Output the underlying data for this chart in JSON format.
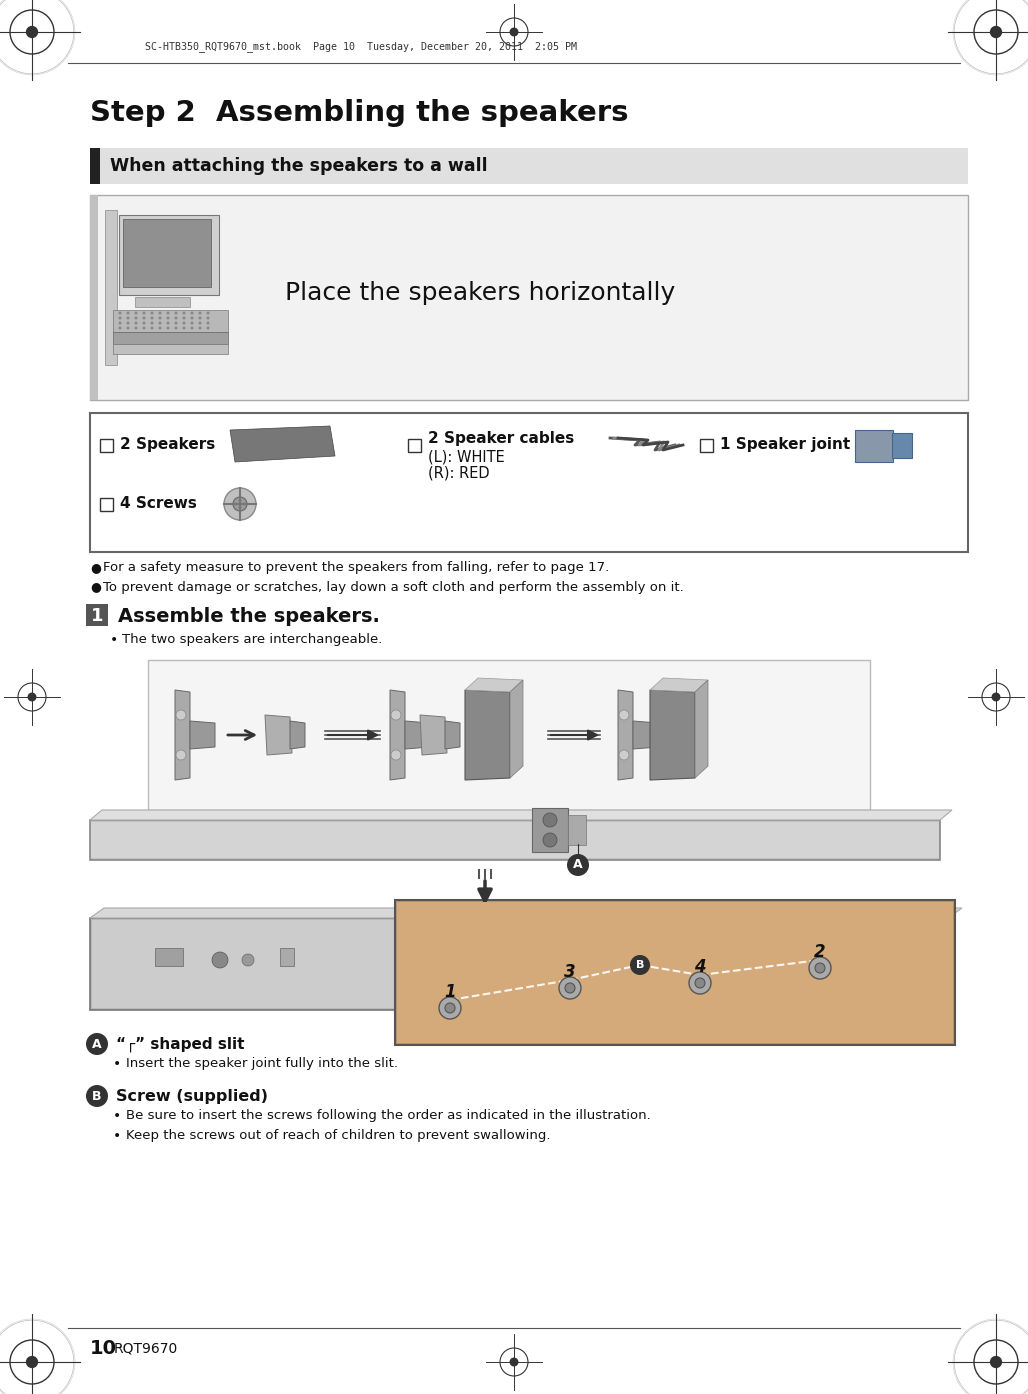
{
  "page_bg": "#ffffff",
  "page_num": "10",
  "page_code": "RQT9670",
  "header_text": "SC-HTB350_RQT9670_mst.book  Page 10  Tuesday, December 20, 2011  2:05 PM",
  "title": "Step 2  Assembling the speakers",
  "section_header": "When attaching the speakers to a wall",
  "section_header_bg": "#e0e0e0",
  "section_header_bar_color": "#222222",
  "place_text": "Place the speakers horizontally",
  "parts_label_1": "2 Speakers",
  "parts_label_2a": "2 Speaker cables",
  "parts_label_2b": "(L): WHITE",
  "parts_label_2c": "(R): RED",
  "parts_label_3": "1 Speaker joint",
  "parts_label_4": "4 Screws",
  "bullet1": "For a safety measure to prevent the speakers from falling, refer to page 17.",
  "bullet2": "To prevent damage or scratches, lay down a soft cloth and perform the assembly on it.",
  "step_num": "1",
  "step_title": "Assemble the speakers.",
  "sub_bullet1": "The two speakers are interchangeable.",
  "anno_a_label": "A",
  "anno_a_text": "“┌” shaped slit",
  "anno_a_bullet": "Insert the speaker joint fully into the slit.",
  "anno_b_label": "B",
  "anno_b_text": "Screw (supplied)",
  "anno_b_bullet1": "Be sure to insert the screws following the order as indicated in the illustration.",
  "anno_b_bullet2": "Keep the screws out of reach of children to prevent swallowing.",
  "footer_num": "10",
  "footer_code": "RQT9670",
  "gray_light": "#e8e8e8",
  "gray_mid": "#b0b0b0",
  "gray_dark": "#777777",
  "gray_darker": "#555555",
  "border_color": "#888888",
  "text_dark": "#111111",
  "text_mid": "#333333"
}
